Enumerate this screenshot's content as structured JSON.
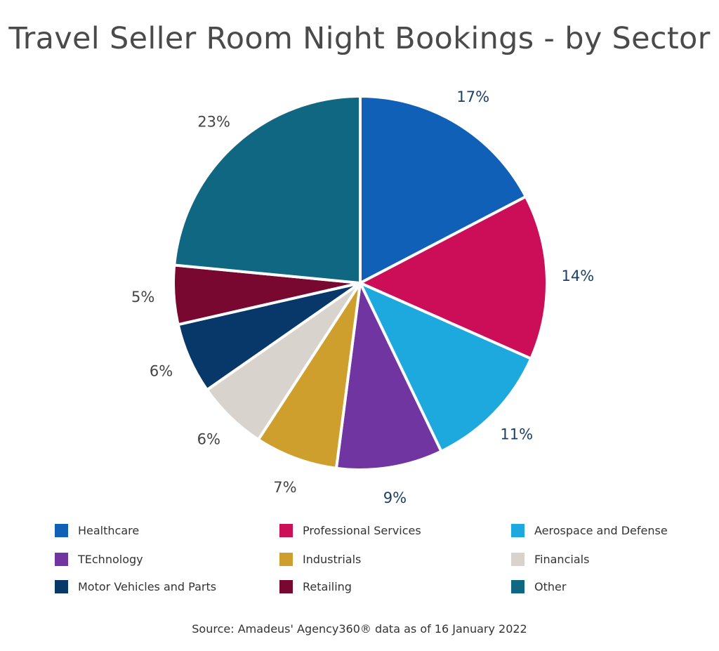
{
  "chart_data": {
    "type": "pie",
    "title": "Travel Seller Room Night Bookings - by Sector",
    "source": "Source: Amadeus' Agency360® data as of 16 January 2022",
    "legend_position": "bottom",
    "slices": [
      {
        "label": "Healthcare",
        "value": 17,
        "display": "17%",
        "color": "#1060b8",
        "label_color": "#1c3f66"
      },
      {
        "label": "Professional Services",
        "value": 14,
        "display": "14%",
        "color": "#cc0e59",
        "label_color": "#1c3f66"
      },
      {
        "label": "Aerospace and Defense",
        "value": 11,
        "display": "11%",
        "color": "#1ea9de",
        "label_color": "#1c3f66"
      },
      {
        "label": "TEchnology",
        "value": 9,
        "display": "9%",
        "color": "#7035a0",
        "label_color": "#1c3f66"
      },
      {
        "label": "Industrials",
        "value": 7,
        "display": "7%",
        "color": "#cf9f2e",
        "label_color": "#444444"
      },
      {
        "label": "Financials",
        "value": 6,
        "display": "6%",
        "color": "#d8d3cc",
        "label_color": "#444444"
      },
      {
        "label": "Motor Vehicles and Parts",
        "value": 6,
        "display": "6%",
        "color": "#08386a",
        "label_color": "#444444"
      },
      {
        "label": "Retailing",
        "value": 5,
        "display": "5%",
        "color": "#780830",
        "label_color": "#444444"
      },
      {
        "label": "Other",
        "value": 23,
        "display": "23%",
        "color": "#106782",
        "label_color": "#444444"
      }
    ]
  }
}
